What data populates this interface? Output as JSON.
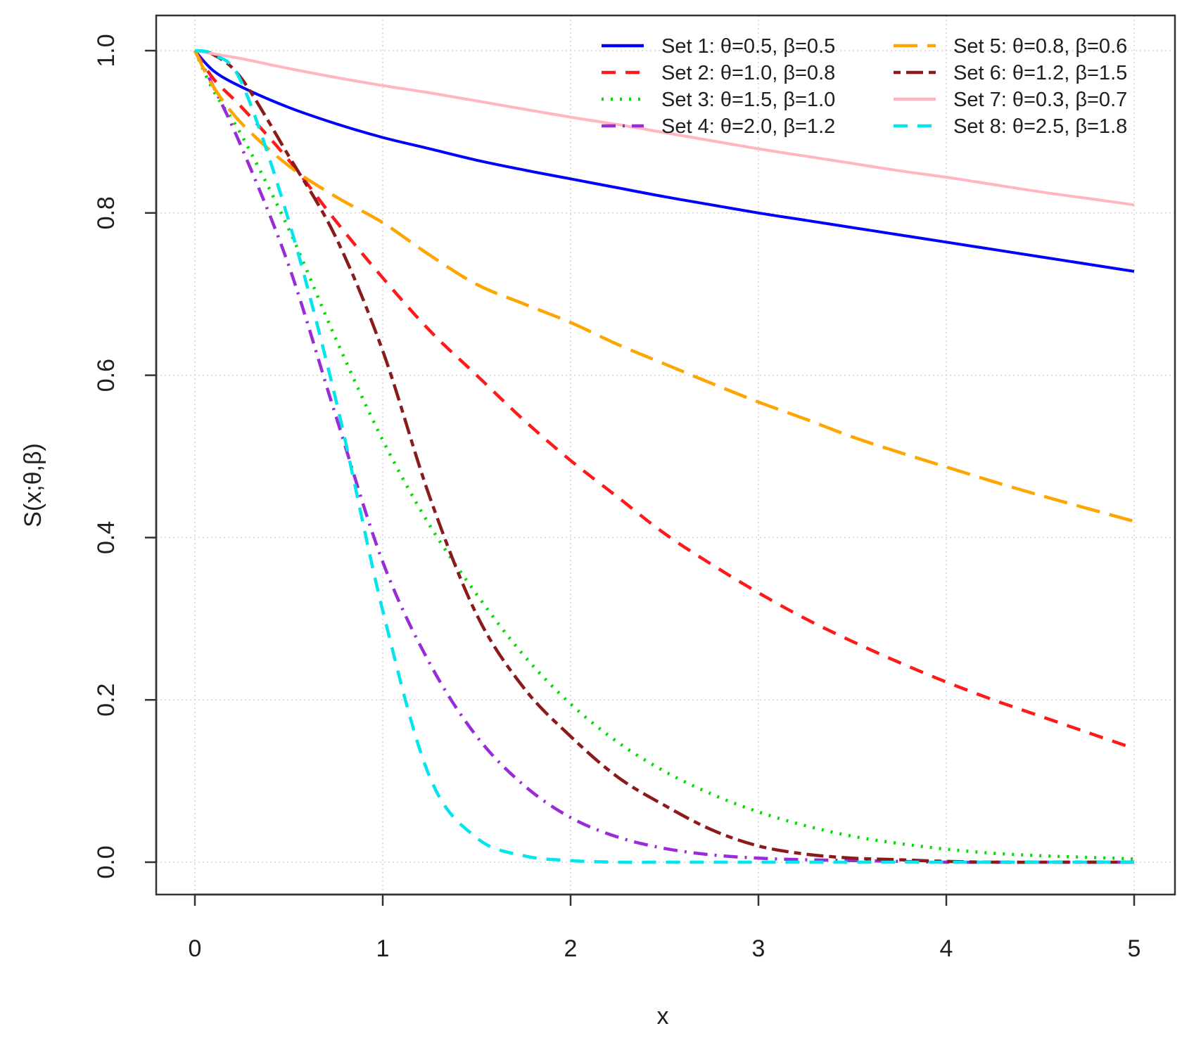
{
  "chart_data": {
    "type": "line",
    "title": "",
    "xlabel": "x",
    "ylabel": "S(x;θ,β)",
    "xlim": [
      0,
      5
    ],
    "ylim": [
      0,
      1
    ],
    "grid": true,
    "legend_position": "top-right",
    "x_ticks": [
      {
        "value": 0,
        "label": "0"
      },
      {
        "value": 1,
        "label": "1"
      },
      {
        "value": 2,
        "label": "2"
      },
      {
        "value": 3,
        "label": "3"
      },
      {
        "value": 4,
        "label": "4"
      },
      {
        "value": 5,
        "label": "5"
      }
    ],
    "y_ticks": [
      {
        "value": 0.0,
        "label": "0.0"
      },
      {
        "value": 0.2,
        "label": "0.2"
      },
      {
        "value": 0.4,
        "label": "0.4"
      },
      {
        "value": 0.6,
        "label": "0.6"
      },
      {
        "value": 0.8,
        "label": "0.8"
      },
      {
        "value": 1.0,
        "label": "1.0"
      }
    ],
    "x": [
      0,
      0.1,
      0.25,
      0.5,
      0.75,
      1,
      1.25,
      1.5,
      1.75,
      2,
      2.25,
      2.5,
      2.75,
      3,
      3.25,
      3.5,
      3.75,
      4,
      4.25,
      4.5,
      4.75,
      5
    ],
    "series": [
      {
        "name": "Set 1: θ=0.5, β=0.5",
        "color": "#0000ff",
        "style": "solid",
        "values": [
          1.0,
          0.975,
          0.955,
          0.93,
          0.91,
          0.893,
          0.879,
          0.865,
          0.853,
          0.842,
          0.831,
          0.82,
          0.81,
          0.8,
          0.791,
          0.782,
          0.773,
          0.764,
          0.755,
          0.746,
          0.737,
          0.728
        ]
      },
      {
        "name": "Set 2: θ=1.0, β=0.8",
        "color": "#ff1a1a",
        "style": "dashed",
        "values": [
          1.0,
          0.965,
          0.93,
          0.865,
          0.79,
          0.72,
          0.655,
          0.6,
          0.545,
          0.495,
          0.45,
          0.405,
          0.367,
          0.332,
          0.3,
          0.272,
          0.246,
          0.222,
          0.2,
          0.18,
          0.16,
          0.14
        ]
      },
      {
        "name": "Set 3: θ=1.5, β=1.0",
        "color": "#00dd00",
        "style": "dotted",
        "values": [
          1.0,
          0.95,
          0.895,
          0.78,
          0.645,
          0.52,
          0.415,
          0.33,
          0.255,
          0.195,
          0.148,
          0.112,
          0.084,
          0.062,
          0.045,
          0.032,
          0.023,
          0.016,
          0.011,
          0.008,
          0.006,
          0.004
        ]
      },
      {
        "name": "Set 4: θ=2.0, β=1.2",
        "color": "#9a2bd9",
        "style": "dashdot",
        "values": [
          1.0,
          0.955,
          0.88,
          0.735,
          0.55,
          0.37,
          0.245,
          0.155,
          0.095,
          0.055,
          0.031,
          0.017,
          0.009,
          0.005,
          0.003,
          0.002,
          0.001,
          0.0,
          0.0,
          0.0,
          0.0,
          0.0
        ]
      },
      {
        "name": "Set 5: θ=0.8, β=0.6",
        "color": "#ffa500",
        "style": "longdash",
        "values": [
          1.0,
          0.955,
          0.91,
          0.858,
          0.82,
          0.788,
          0.748,
          0.712,
          0.688,
          0.665,
          0.638,
          0.614,
          0.59,
          0.567,
          0.546,
          0.524,
          0.505,
          0.487,
          0.469,
          0.452,
          0.436,
          0.42
        ]
      },
      {
        "name": "Set 6: θ=1.2, β=1.5",
        "color": "#8b1a1a",
        "style": "twodash",
        "values": [
          1.0,
          0.995,
          0.965,
          0.87,
          0.77,
          0.63,
          0.45,
          0.305,
          0.215,
          0.155,
          0.105,
          0.07,
          0.04,
          0.02,
          0.01,
          0.005,
          0.003,
          0.001,
          0.0,
          0.0,
          0.0,
          0.0
        ]
      },
      {
        "name": "Set 7: θ=0.3, β=0.7",
        "color": "#ffb6c1",
        "style": "solid",
        "values": [
          1.0,
          0.996,
          0.99,
          0.978,
          0.967,
          0.957,
          0.948,
          0.938,
          0.928,
          0.918,
          0.909,
          0.899,
          0.889,
          0.879,
          0.87,
          0.861,
          0.852,
          0.844,
          0.835,
          0.826,
          0.818,
          0.81
        ]
      },
      {
        "name": "Set 8: θ=2.5, β=1.8",
        "color": "#00e5ee",
        "style": "dashed",
        "values": [
          1.0,
          0.995,
          0.96,
          0.79,
          0.57,
          0.31,
          0.105,
          0.03,
          0.008,
          0.002,
          0.0,
          0.0,
          0.0,
          0.0,
          0.0,
          0.0,
          0.0,
          0.0,
          0.0,
          0.0,
          0.0,
          0.0
        ]
      }
    ]
  }
}
